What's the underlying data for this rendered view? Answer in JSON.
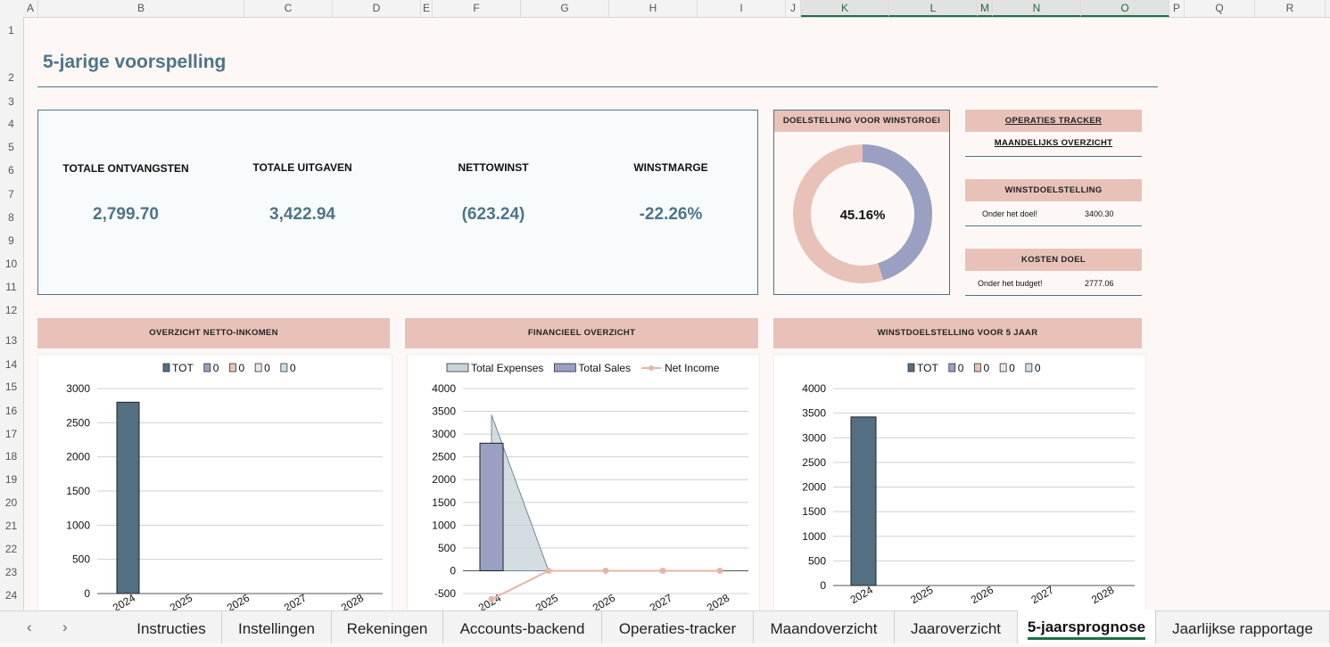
{
  "columns": [
    "A",
    "B",
    "C",
    "D",
    "E",
    "F",
    "G",
    "H",
    "I",
    "J",
    "K",
    "L",
    "M",
    "N",
    "O",
    "P",
    "Q",
    "R"
  ],
  "rows": [
    "1",
    "2",
    "3",
    "4",
    "5",
    "6",
    "7",
    "8",
    "9",
    "10",
    "11",
    "12",
    "13",
    "14",
    "15",
    "16",
    "17",
    "18",
    "19",
    "20",
    "21",
    "22",
    "23",
    "24"
  ],
  "title": "5-jarige voorspelling",
  "kpis": [
    {
      "label": "TOTALE ONTVANGSTEN",
      "value": "2,799.70"
    },
    {
      "label": "TOTALE UITGAVEN",
      "value": "3,422.94"
    },
    {
      "label": "NETTOWINST",
      "value": "(623.24)"
    },
    {
      "label": "WINSTMARGE",
      "value": "-22.26%"
    }
  ],
  "goal": {
    "title": "DOELSTELLING VOOR WINSTGROEI",
    "percent_label": "45.16%",
    "percent": 0.4516,
    "colors": {
      "filled": "#9aa0c2",
      "rest": "#e8c2b8"
    }
  },
  "side": {
    "tracker": "OPERATIES TRACKER",
    "overview": "MAANDELIJKS OVERZICHT",
    "profit_goal": "WINSTDOELSTELLING",
    "profit_status": "Onder het doel!",
    "profit_value": "3400.30",
    "cost_goal": "KOSTEN DOEL",
    "cost_status": "Onder het budget!",
    "cost_value": "2777.06"
  },
  "sections": {
    "net_income": "OVERZICHT NETTO-INKOMEN",
    "financial": "FINANCIEEL OVERZICHT",
    "profit5": "WINSTDOELSTELLING VOOR 5 JAAR"
  },
  "chart_data": [
    {
      "type": "bar",
      "categories": [
        "2024",
        "2025",
        "2026",
        "2027",
        "2028"
      ],
      "series": [
        {
          "name": "TOT",
          "values": [
            2800,
            0,
            0,
            0,
            0
          ],
          "color": "#546f80"
        },
        {
          "name": "0",
          "values": [
            0,
            0,
            0,
            0,
            0
          ],
          "color": "#9aa0c2"
        },
        {
          "name": "0",
          "values": [
            0,
            0,
            0,
            0,
            0
          ],
          "color": "#e8c2b8"
        },
        {
          "name": "0",
          "values": [
            0,
            0,
            0,
            0,
            0
          ],
          "color": "#f1e6e0"
        },
        {
          "name": "0",
          "values": [
            0,
            0,
            0,
            0,
            0
          ],
          "color": "#cfe0ea"
        }
      ],
      "yticks": [
        0,
        500,
        1000,
        1500,
        2000,
        2500,
        3000
      ],
      "ylim": [
        0,
        3000
      ]
    },
    {
      "type": "bar",
      "categories": [
        "2024",
        "2025",
        "2026",
        "2027",
        "2028"
      ],
      "series": [
        {
          "name": "Total Expenses",
          "kind": "area",
          "values": [
            3422.94,
            0,
            0,
            0,
            0
          ],
          "color": "#c9d4da"
        },
        {
          "name": "Total Sales",
          "kind": "bar",
          "values": [
            2799.7,
            0,
            0,
            0,
            0
          ],
          "color": "#9aa0c2"
        },
        {
          "name": "Net Income",
          "kind": "line",
          "values": [
            -623.24,
            0,
            0,
            0,
            0
          ],
          "color": "#e8b4a8"
        }
      ],
      "yticks": [
        -500,
        0,
        500,
        1000,
        1500,
        2000,
        2500,
        3000,
        3500,
        4000
      ],
      "ylim": [
        -500,
        4000
      ]
    },
    {
      "type": "bar",
      "categories": [
        "2024",
        "2025",
        "2026",
        "2027",
        "2028"
      ],
      "series": [
        {
          "name": "TOT",
          "values": [
            3422.94,
            0,
            0,
            0,
            0
          ],
          "color": "#546f80"
        },
        {
          "name": "0",
          "values": [
            0,
            0,
            0,
            0,
            0
          ],
          "color": "#9aa0c2"
        },
        {
          "name": "0",
          "values": [
            0,
            0,
            0,
            0,
            0
          ],
          "color": "#e8c2b8"
        },
        {
          "name": "0",
          "values": [
            0,
            0,
            0,
            0,
            0
          ],
          "color": "#f1e6e0"
        },
        {
          "name": "0",
          "values": [
            0,
            0,
            0,
            0,
            0
          ],
          "color": "#cfe0ea"
        }
      ],
      "yticks": [
        0,
        500,
        1000,
        1500,
        2000,
        2500,
        3000,
        3500,
        4000
      ],
      "ylim": [
        0,
        4000
      ]
    }
  ],
  "tabs": [
    "Instructies",
    "Instellingen",
    "Rekeningen",
    "Accounts-backend",
    "Operaties-tracker",
    "Maandoverzicht",
    "Jaaroverzicht",
    "5-jaarsprognose",
    "Jaarlijkse rapportage"
  ],
  "active_tab": "5-jaarsprognose",
  "nav": {
    "prev": "‹",
    "next": "›"
  }
}
